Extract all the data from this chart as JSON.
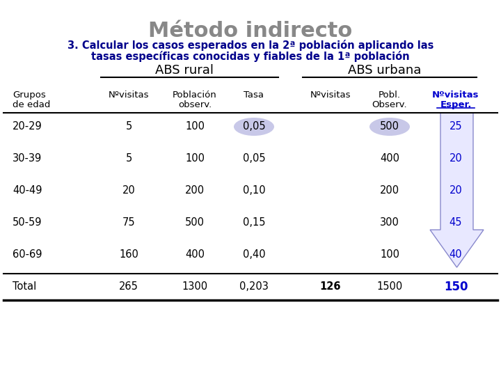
{
  "title": "Método indirecto",
  "subtitle_line1": "3. Calcular los casos esperados en la 2ª población aplicando las",
  "subtitle_line2": "tasas específicas conocidas y fiables de la 1ª población",
  "abs_rural_label": "ABS rural",
  "abs_urbana_label": "ABS urbana",
  "age_groups": [
    "20-29",
    "30-39",
    "40-49",
    "50-59",
    "60-69",
    "Total"
  ],
  "nvisitas_rural": [
    "5",
    "5",
    "20",
    "75",
    "160",
    "265"
  ],
  "poblacion_rural": [
    "100",
    "100",
    "200",
    "500",
    "400",
    "1300"
  ],
  "tasa": [
    "0,05",
    "0,05",
    "0,10",
    "0,15",
    "0,40",
    "0,203"
  ],
  "nvisitas_urbana": [
    "",
    "",
    "",
    "",
    "",
    "126"
  ],
  "pobl_urbana": [
    "500",
    "400",
    "200",
    "300",
    "100",
    "1500"
  ],
  "nvisitas_esper": [
    "25",
    "20",
    "20",
    "45",
    "40",
    "150"
  ],
  "title_color": "#888888",
  "subtitle_color": "#00008B",
  "esper_color": "#0000CD",
  "bg_color": "#FFFFFF",
  "highlight_fill": "#C8C8E8",
  "arrow_color": "#8888CC",
  "arrow_fill": "#E8E8FF"
}
